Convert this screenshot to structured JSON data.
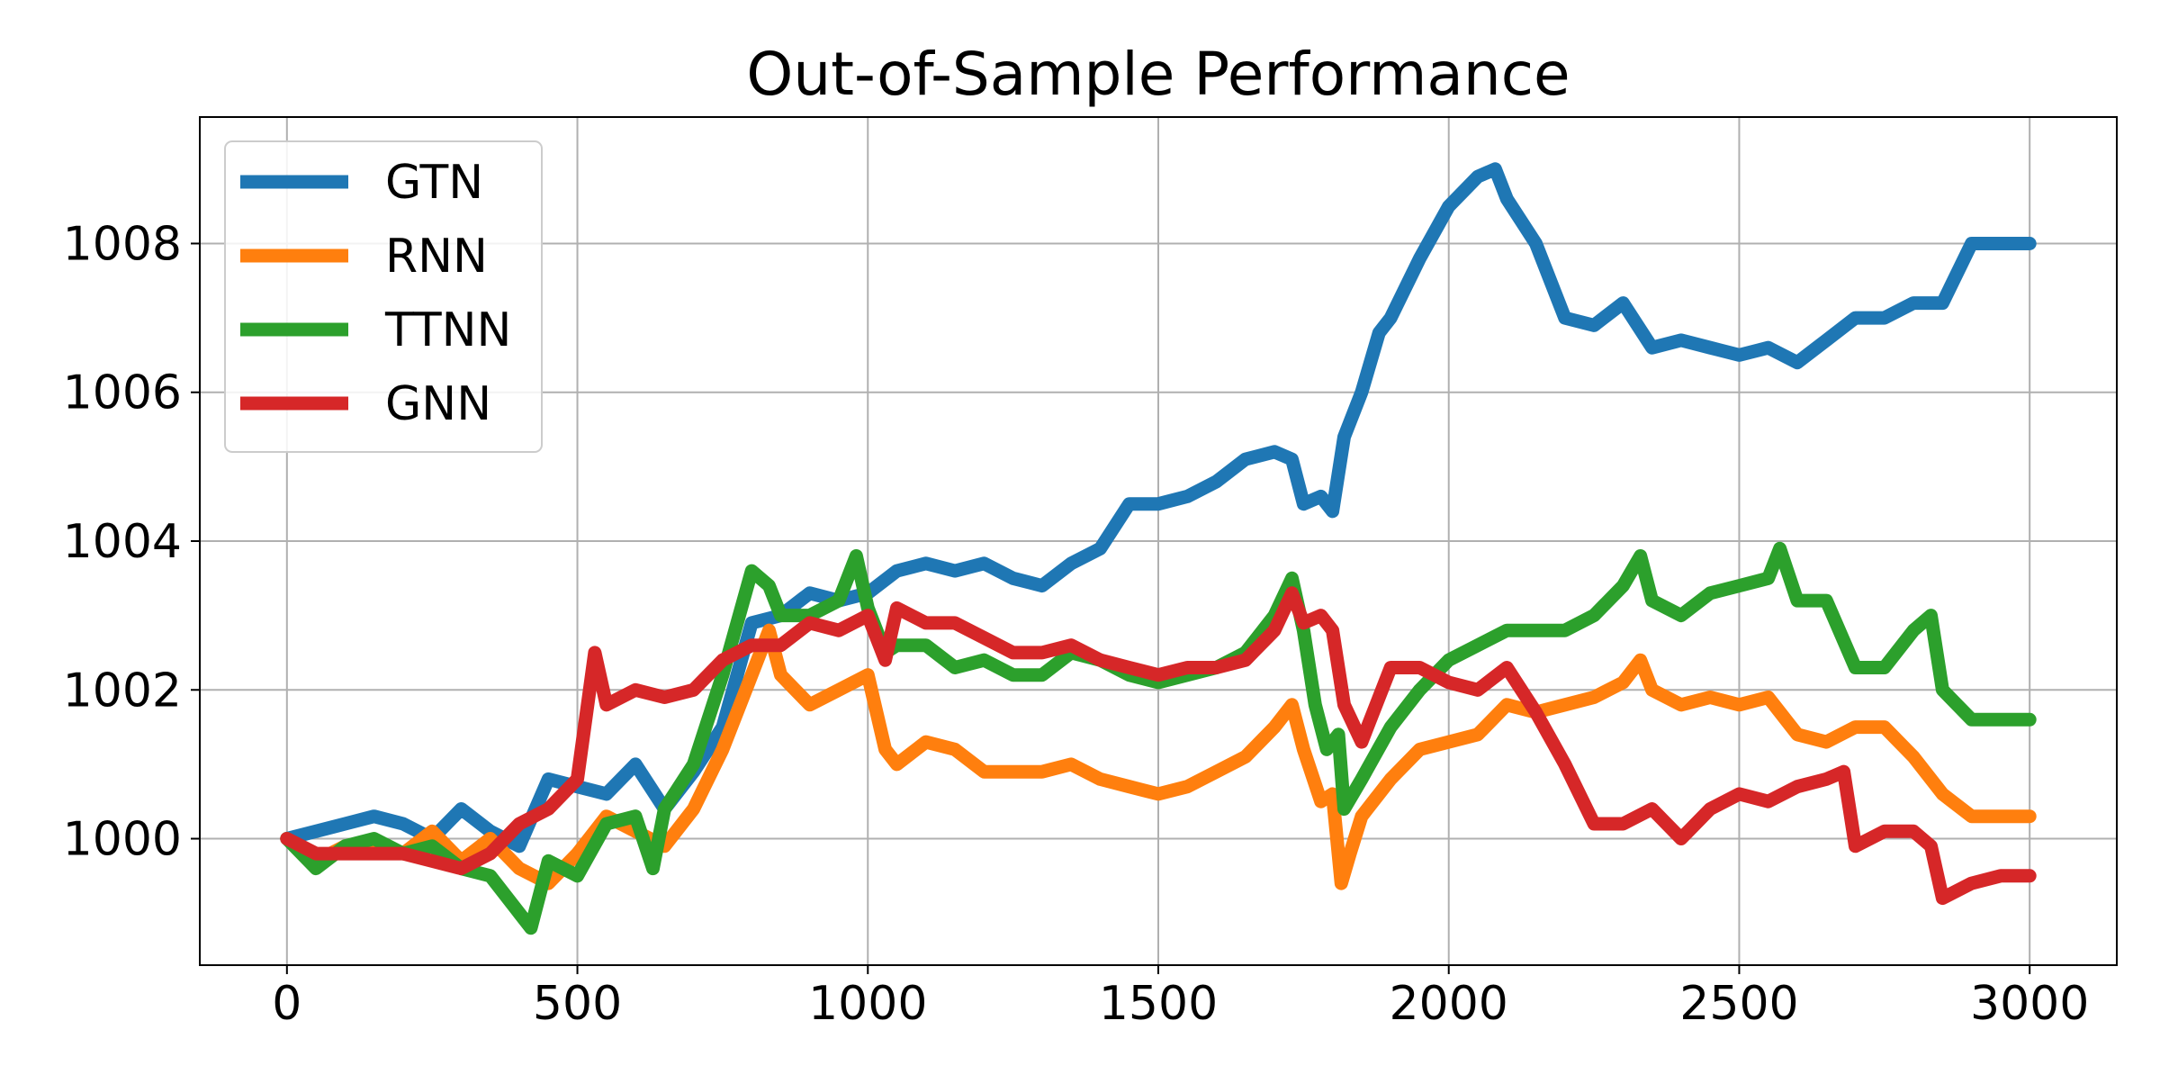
{
  "chart_data": {
    "type": "line",
    "title": "Out-of-Sample Performance",
    "xlabel": "",
    "ylabel": "",
    "xlim": [
      -150,
      3150
    ],
    "ylim": [
      998.3,
      1009.7
    ],
    "xticks": [
      0,
      500,
      1000,
      1500,
      2000,
      2500,
      3000
    ],
    "xtick_labels": [
      "0",
      "500",
      "1000",
      "1500",
      "2000",
      "2500",
      "3000"
    ],
    "yticks": [
      1000,
      1002,
      1004,
      1006,
      1008
    ],
    "ytick_labels": [
      "1000",
      "1002",
      "1004",
      "1006",
      "1008"
    ],
    "grid": true,
    "legend_position": "upper-left",
    "series": [
      {
        "name": "GTN",
        "color": "#1f77b4",
        "x": [
          0,
          50,
          100,
          150,
          200,
          250,
          300,
          350,
          400,
          450,
          500,
          550,
          600,
          650,
          700,
          750,
          800,
          850,
          900,
          950,
          1000,
          1050,
          1100,
          1150,
          1200,
          1250,
          1300,
          1350,
          1400,
          1450,
          1500,
          1550,
          1600,
          1650,
          1700,
          1730,
          1750,
          1780,
          1800,
          1820,
          1850,
          1880,
          1900,
          1950,
          2000,
          2050,
          2080,
          2100,
          2150,
          2200,
          2250,
          2300,
          2350,
          2400,
          2450,
          2500,
          2550,
          2600,
          2650,
          2700,
          2750,
          2800,
          2850,
          2900,
          2950,
          3000
        ],
        "y": [
          1000.0,
          1000.1,
          1000.2,
          1000.3,
          1000.2,
          1000.0,
          1000.4,
          1000.1,
          999.9,
          1000.8,
          1000.7,
          1000.6,
          1001.0,
          1000.4,
          1000.9,
          1001.5,
          1002.9,
          1003.0,
          1003.3,
          1003.2,
          1003.3,
          1003.6,
          1003.7,
          1003.6,
          1003.7,
          1003.5,
          1003.4,
          1003.7,
          1003.9,
          1004.5,
          1004.5,
          1004.6,
          1004.8,
          1005.1,
          1005.2,
          1005.1,
          1004.5,
          1004.6,
          1004.4,
          1005.4,
          1006.0,
          1006.8,
          1007.0,
          1007.8,
          1008.5,
          1008.9,
          1009.0,
          1008.6,
          1008.0,
          1007.0,
          1006.9,
          1007.2,
          1006.6,
          1006.7,
          1006.6,
          1006.5,
          1006.6,
          1006.4,
          1006.7,
          1007.0,
          1007.0,
          1007.2,
          1007.2,
          1008.0,
          1008.0,
          1008.0
        ]
      },
      {
        "name": "RNN",
        "color": "#ff7f0e",
        "x": [
          0,
          50,
          100,
          150,
          200,
          250,
          300,
          350,
          400,
          450,
          500,
          550,
          600,
          650,
          700,
          750,
          800,
          830,
          850,
          900,
          950,
          1000,
          1030,
          1050,
          1100,
          1150,
          1200,
          1250,
          1300,
          1350,
          1400,
          1450,
          1500,
          1550,
          1600,
          1650,
          1700,
          1730,
          1750,
          1780,
          1800,
          1815,
          1830,
          1850,
          1900,
          1950,
          2000,
          2050,
          2100,
          2150,
          2200,
          2250,
          2300,
          2330,
          2350,
          2400,
          2450,
          2500,
          2550,
          2600,
          2650,
          2700,
          2750,
          2800,
          2850,
          2900,
          2950,
          3000
        ],
        "y": [
          1000.0,
          999.7,
          999.9,
          999.9,
          999.8,
          1000.1,
          999.7,
          1000.0,
          999.6,
          999.4,
          999.8,
          1000.3,
          1000.1,
          999.9,
          1000.4,
          1001.2,
          1002.2,
          1002.8,
          1002.2,
          1001.8,
          1002.0,
          1002.2,
          1001.2,
          1001.0,
          1001.3,
          1001.2,
          1000.9,
          1000.9,
          1000.9,
          1001.0,
          1000.8,
          1000.7,
          1000.6,
          1000.7,
          1000.9,
          1001.1,
          1001.5,
          1001.8,
          1001.2,
          1000.5,
          1000.6,
          999.4,
          999.8,
          1000.3,
          1000.8,
          1001.2,
          1001.3,
          1001.4,
          1001.8,
          1001.7,
          1001.8,
          1001.9,
          1002.1,
          1002.4,
          1002.0,
          1001.8,
          1001.9,
          1001.8,
          1001.9,
          1001.4,
          1001.3,
          1001.5,
          1001.5,
          1001.1,
          1000.6,
          1000.3,
          1000.3,
          1000.3
        ]
      },
      {
        "name": "TTNN",
        "color": "#2ca02c",
        "x": [
          0,
          50,
          100,
          150,
          200,
          250,
          300,
          350,
          400,
          420,
          450,
          500,
          550,
          600,
          630,
          650,
          700,
          750,
          800,
          830,
          850,
          900,
          950,
          980,
          1000,
          1030,
          1050,
          1100,
          1150,
          1200,
          1250,
          1300,
          1350,
          1400,
          1450,
          1500,
          1550,
          1600,
          1650,
          1700,
          1730,
          1750,
          1770,
          1790,
          1810,
          1820,
          1850,
          1900,
          1950,
          2000,
          2050,
          2100,
          2150,
          2200,
          2250,
          2300,
          2330,
          2350,
          2400,
          2450,
          2500,
          2550,
          2570,
          2600,
          2650,
          2700,
          2750,
          2800,
          2830,
          2850,
          2900,
          2950,
          3000
        ],
        "y": [
          1000.0,
          999.6,
          999.9,
          1000.0,
          999.8,
          999.9,
          999.6,
          999.5,
          999.0,
          998.8,
          999.7,
          999.5,
          1000.2,
          1000.3,
          999.6,
          1000.4,
          1001.0,
          1002.2,
          1003.6,
          1003.4,
          1003.0,
          1003.0,
          1003.2,
          1003.8,
          1003.1,
          1002.5,
          1002.6,
          1002.6,
          1002.3,
          1002.4,
          1002.2,
          1002.2,
          1002.5,
          1002.4,
          1002.2,
          1002.1,
          1002.2,
          1002.3,
          1002.5,
          1003.0,
          1003.5,
          1002.8,
          1001.8,
          1001.2,
          1001.4,
          1000.4,
          1000.8,
          1001.5,
          1002.0,
          1002.4,
          1002.6,
          1002.8,
          1002.8,
          1002.8,
          1003.0,
          1003.4,
          1003.8,
          1003.2,
          1003.0,
          1003.3,
          1003.4,
          1003.5,
          1003.9,
          1003.2,
          1003.2,
          1002.3,
          1002.3,
          1002.8,
          1003.0,
          1002.0,
          1001.6,
          1001.6,
          1001.6
        ]
      },
      {
        "name": "GNN",
        "color": "#d62728",
        "x": [
          0,
          50,
          100,
          150,
          200,
          250,
          300,
          350,
          400,
          450,
          500,
          530,
          550,
          600,
          650,
          700,
          750,
          800,
          850,
          900,
          950,
          1000,
          1030,
          1050,
          1100,
          1150,
          1200,
          1250,
          1300,
          1350,
          1400,
          1450,
          1500,
          1550,
          1600,
          1650,
          1700,
          1730,
          1750,
          1780,
          1800,
          1820,
          1850,
          1900,
          1950,
          2000,
          2050,
          2100,
          2150,
          2200,
          2250,
          2300,
          2350,
          2400,
          2450,
          2500,
          2550,
          2600,
          2650,
          2680,
          2700,
          2750,
          2800,
          2830,
          2850,
          2900,
          2950,
          3000
        ],
        "y": [
          1000.0,
          999.8,
          999.8,
          999.8,
          999.8,
          999.7,
          999.6,
          999.8,
          1000.2,
          1000.4,
          1000.8,
          1002.5,
          1001.8,
          1002.0,
          1001.9,
          1002.0,
          1002.4,
          1002.6,
          1002.6,
          1002.9,
          1002.8,
          1003.0,
          1002.4,
          1003.1,
          1002.9,
          1002.9,
          1002.7,
          1002.5,
          1002.5,
          1002.6,
          1002.4,
          1002.3,
          1002.2,
          1002.3,
          1002.3,
          1002.4,
          1002.8,
          1003.3,
          1002.9,
          1003.0,
          1002.8,
          1001.8,
          1001.3,
          1002.3,
          1002.3,
          1002.1,
          1002.0,
          1002.3,
          1001.7,
          1001.0,
          1000.2,
          1000.2,
          1000.4,
          1000.0,
          1000.4,
          1000.6,
          1000.5,
          1000.7,
          1000.8,
          1000.9,
          999.9,
          1000.1,
          1000.1,
          999.9,
          999.2,
          999.4,
          999.5,
          999.5
        ]
      }
    ]
  }
}
